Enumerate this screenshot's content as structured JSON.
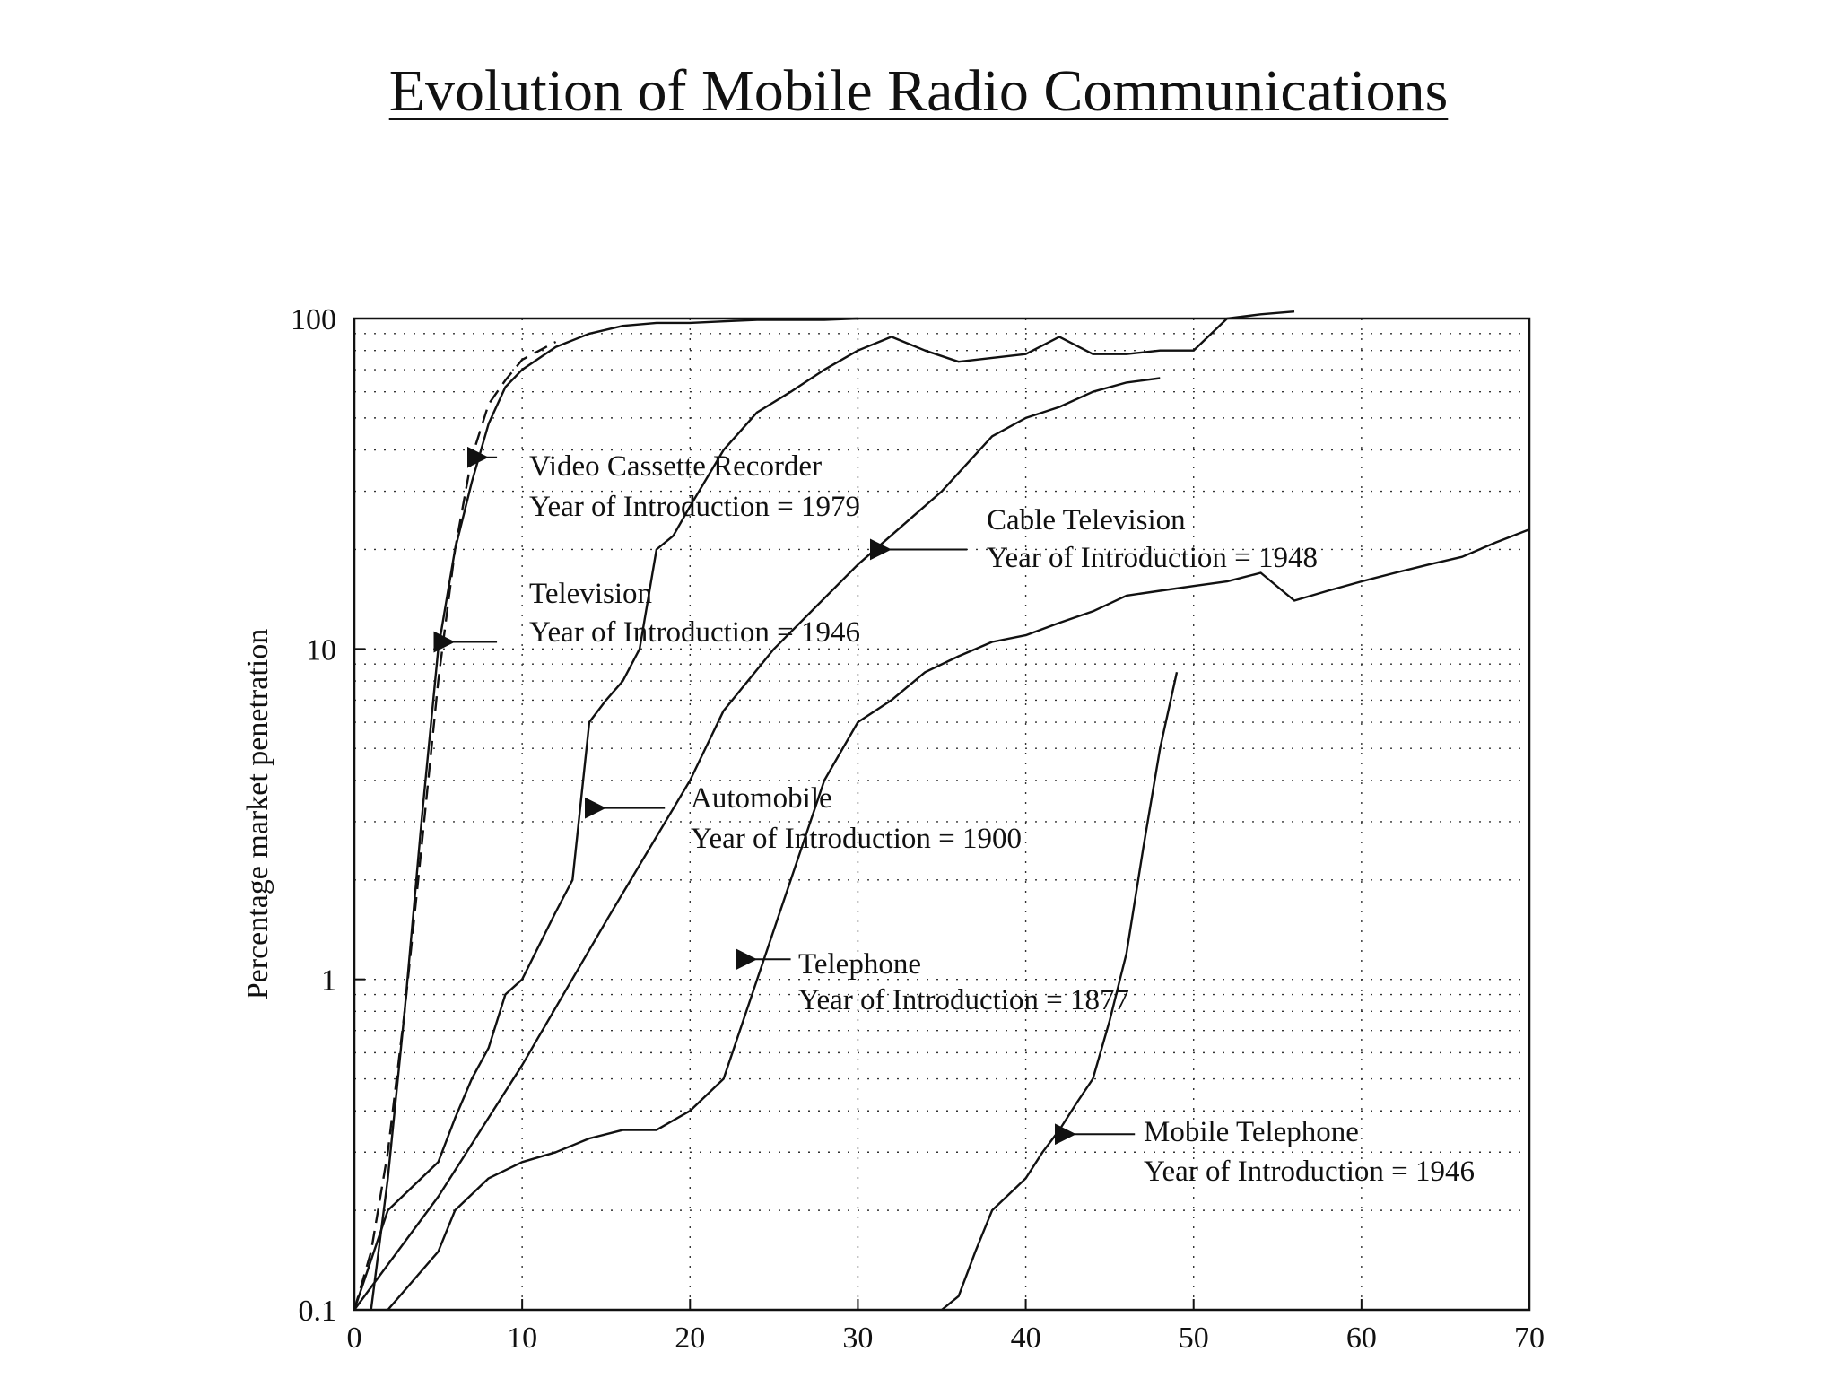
{
  "title": "Evolution of Mobile Radio Communications",
  "chart_data": {
    "type": "line",
    "title": "Evolution of Mobile Radio Communications",
    "xlabel": "",
    "ylabel": "Percentage market penetration",
    "xlim": [
      0,
      70
    ],
    "ylim": [
      0.1,
      100
    ],
    "yscale": "log",
    "grid": true,
    "x_ticks": [
      "0",
      "10",
      "20",
      "30",
      "40",
      "50",
      "60",
      "70"
    ],
    "y_ticks": [
      "0.1",
      "1",
      "10",
      "100"
    ],
    "series": [
      {
        "name": "Video Cassette Recorder",
        "year_line": "Year of Introduction = 1979",
        "style": "dashed",
        "x": [
          0,
          1,
          2,
          3,
          4,
          5,
          6,
          7,
          8,
          9,
          10,
          12
        ],
        "y": [
          0.1,
          0.15,
          0.3,
          0.8,
          2.5,
          8,
          20,
          38,
          55,
          65,
          75,
          85
        ]
      },
      {
        "name": "Television",
        "year_line": "Year of Introduction = 1946",
        "style": "solid",
        "x": [
          1,
          2,
          3,
          4,
          5,
          6,
          7,
          8,
          9,
          10,
          12,
          14,
          16,
          18,
          20,
          22,
          24,
          26,
          28,
          30
        ],
        "y": [
          0.1,
          0.25,
          0.8,
          3,
          10,
          20,
          32,
          48,
          62,
          70,
          82,
          90,
          95,
          97,
          97,
          98,
          99,
          99,
          99,
          100
        ]
      },
      {
        "name": "Automobile",
        "year_line": "Year of Introduction = 1900",
        "style": "solid",
        "x": [
          0,
          2,
          5,
          6,
          7,
          8,
          9,
          10,
          12,
          13,
          14,
          15,
          16,
          17,
          18,
          19,
          20,
          22,
          24,
          26,
          28,
          30,
          32,
          34,
          36,
          38,
          40,
          42,
          44,
          46,
          48,
          50,
          52,
          54,
          56
        ],
        "y": [
          0.1,
          0.2,
          0.28,
          0.38,
          0.5,
          0.62,
          0.9,
          1.0,
          1.6,
          2.0,
          6.0,
          7.0,
          8.0,
          10.0,
          20.0,
          22.0,
          27.0,
          40.0,
          52.0,
          60.0,
          70.0,
          80.0,
          88.0,
          80.0,
          74.0,
          76.0,
          78.0,
          88.0,
          78.0,
          78.0,
          80.0,
          80.0,
          100.0,
          103.0,
          105.0
        ]
      },
      {
        "name": "Cable Television",
        "year_line": "Year of Introduction = 1948",
        "style": "solid",
        "x": [
          0,
          5,
          10,
          15,
          20,
          22,
          25,
          30,
          35,
          38,
          40,
          42,
          44,
          46,
          48
        ],
        "y": [
          0.1,
          0.22,
          0.55,
          1.5,
          4.0,
          6.5,
          10.0,
          18.0,
          30.0,
          44.0,
          50.0,
          54.0,
          60.0,
          64.0,
          66.0
        ]
      },
      {
        "name": "Telephone",
        "year_line": "Year of Introduction = 1877",
        "style": "solid",
        "x": [
          2,
          5,
          6,
          8,
          10,
          12,
          14,
          16,
          18,
          20,
          22,
          24,
          26,
          28,
          30,
          32,
          34,
          36,
          38,
          40,
          42,
          44,
          46,
          48,
          50,
          52,
          54,
          56,
          58,
          60,
          62,
          64,
          66,
          68,
          70
        ],
        "y": [
          0.1,
          0.15,
          0.2,
          0.25,
          0.28,
          0.3,
          0.33,
          0.35,
          0.35,
          0.4,
          0.5,
          1.0,
          2.0,
          4.0,
          6.0,
          7.0,
          8.5,
          9.5,
          10.5,
          11.0,
          12.0,
          13.0,
          14.5,
          15.0,
          15.5,
          16.0,
          17.0,
          14.0,
          15.0,
          16.0,
          17.0,
          18.0,
          19.0,
          21.0,
          23.0
        ]
      },
      {
        "name": "Mobile Telephone",
        "year_line": "Year of Introduction = 1946",
        "style": "solid",
        "x": [
          35,
          36,
          37,
          38,
          40,
          41,
          42,
          43,
          44,
          45,
          46,
          47,
          48,
          49
        ],
        "y": [
          0.1,
          0.11,
          0.15,
          0.2,
          0.25,
          0.3,
          0.35,
          0.42,
          0.5,
          0.75,
          1.2,
          2.5,
          5.0,
          8.5
        ]
      }
    ]
  }
}
